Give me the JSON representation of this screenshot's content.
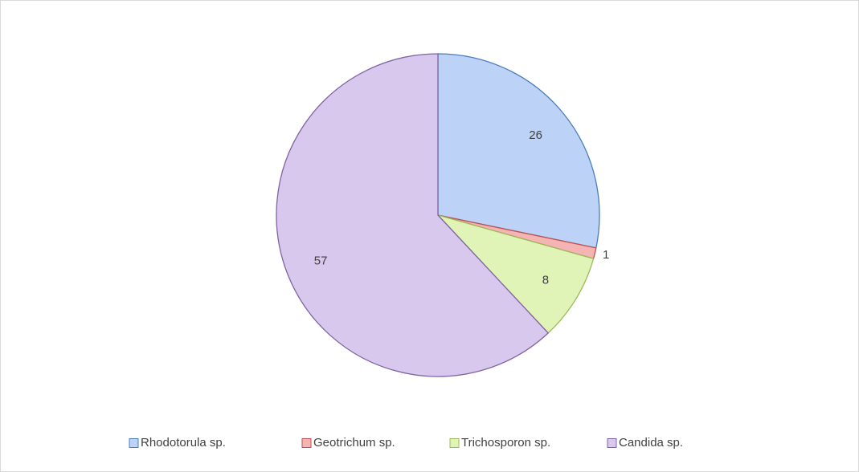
{
  "chart_data": {
    "type": "pie",
    "categories": [
      "Rhodotorula sp.",
      "Geotrichum sp.",
      "Trichosporon sp.",
      "Candida sp."
    ],
    "values": [
      26,
      1,
      8,
      57
    ],
    "colors": [
      "#bcd2f7",
      "#f4b4b4",
      "#e0f4b8",
      "#d8c8ee"
    ],
    "edge_colors": [
      "#4a7ebb",
      "#c0504d",
      "#9bbb59",
      "#8064a2"
    ],
    "legend": "bottom"
  }
}
